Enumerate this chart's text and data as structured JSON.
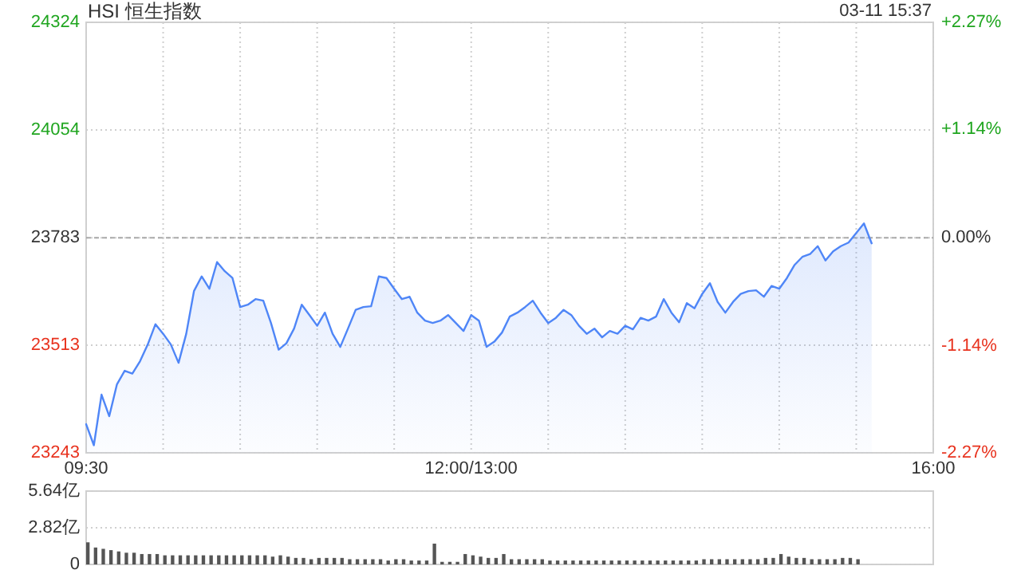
{
  "chart_data": [
    {
      "type": "area",
      "title": "HSI 恒生指数",
      "subtitle": "03-11 15:37",
      "categories": [
        "09:30",
        null,
        null,
        null,
        null,
        null,
        null,
        null,
        null,
        null,
        null,
        null,
        null,
        null,
        null,
        null,
        null,
        null,
        null,
        null,
        null,
        null,
        null,
        null,
        null,
        null,
        null,
        null,
        null,
        null,
        null,
        null,
        null,
        null,
        null,
        null,
        null,
        null,
        null,
        null,
        null,
        null,
        null,
        null,
        null,
        null,
        null,
        null,
        null,
        null,
        "12:00/13:00",
        null,
        null,
        null,
        null,
        null,
        null,
        null,
        null,
        null,
        null,
        null,
        null,
        null,
        null,
        null,
        null,
        null,
        null,
        null,
        null,
        null,
        null,
        null,
        null,
        null,
        null,
        null,
        null,
        null,
        null,
        null,
        null,
        null,
        null,
        null,
        null,
        null,
        null,
        null,
        null,
        null,
        null,
        null,
        null,
        null,
        null,
        null,
        null,
        null,
        null,
        null,
        null,
        null,
        null,
        null,
        null,
        null,
        null,
        null,
        "16:00"
      ],
      "series": [
        {
          "color": "#4f86f7",
          "values": [
            23315,
            23262,
            23389,
            23335,
            23415,
            23449,
            23442,
            23473,
            23515,
            23566,
            23542,
            23515,
            23469,
            23542,
            23649,
            23686,
            23655,
            23722,
            23699,
            23682,
            23609,
            23615,
            23629,
            23625,
            23569,
            23502,
            23518,
            23555,
            23615,
            23589,
            23562,
            23595,
            23542,
            23509,
            23555,
            23602,
            23609,
            23611,
            23686,
            23682,
            23655,
            23629,
            23635,
            23595,
            23575,
            23569,
            23575,
            23589,
            23569,
            23549,
            23589,
            23575,
            23509,
            23522,
            23545,
            23585,
            23595,
            23609,
            23625,
            23595,
            23569,
            23582,
            23602,
            23589,
            23562,
            23542,
            23555,
            23533,
            23549,
            23542,
            23562,
            23553,
            23582,
            23575,
            23585,
            23629,
            23595,
            23571,
            23619,
            23606,
            23642,
            23669,
            23622,
            23595,
            23622,
            23642,
            23649,
            23651,
            23635,
            23662,
            23655,
            23682,
            23715,
            23735,
            23742,
            23762,
            23726,
            23749,
            23762,
            23771,
            23795,
            23819,
            23769,
            null,
            null,
            null,
            null,
            null,
            null,
            null,
            null
          ]
        }
      ],
      "ylim": [
        23243,
        24324
      ],
      "yticks": [
        23243,
        23513,
        23783,
        24054,
        24324
      ],
      "y2lim": [
        -2.27,
        2.27
      ],
      "y2ticks": [
        {
          "value": -2.27,
          "label": "-2.27%"
        },
        {
          "value": -1.14,
          "label": "-1.14%"
        },
        {
          "value": 0,
          "label": "0.00%"
        },
        {
          "value": 1.14,
          "label": "+1.14%"
        },
        {
          "value": 2.27,
          "label": "+2.27%"
        }
      ],
      "ref_lines": [
        {
          "axis": "y",
          "value": 23783
        }
      ],
      "grid": true
    },
    {
      "type": "bar",
      "categories": [
        null,
        null,
        null,
        null,
        null,
        null,
        null,
        null,
        null,
        null,
        null,
        null,
        null,
        null,
        null,
        null,
        null,
        null,
        null,
        null,
        null,
        null,
        null,
        null,
        null,
        null,
        null,
        null,
        null,
        null,
        null,
        null,
        null,
        null,
        null,
        null,
        null,
        null,
        null,
        null,
        null,
        null,
        null,
        null,
        null,
        null,
        null,
        null,
        null,
        null,
        null,
        null,
        null,
        null,
        null,
        null,
        null,
        null,
        null,
        null,
        null,
        null,
        null,
        null,
        null,
        null,
        null,
        null,
        null,
        null,
        null,
        null,
        null,
        null,
        null,
        null,
        null,
        null,
        null,
        null,
        null,
        null,
        null,
        null,
        null,
        null,
        null,
        null,
        null,
        null,
        null,
        null,
        null,
        null,
        null,
        null,
        null,
        null,
        null,
        null,
        null,
        null,
        null,
        null,
        null,
        null,
        null,
        null,
        null,
        null,
        null
      ],
      "values": [
        1.7,
        1.3,
        1.2,
        1.1,
        1.0,
        0.9,
        0.9,
        0.8,
        0.8,
        0.8,
        0.7,
        0.7,
        0.7,
        0.7,
        0.7,
        0.7,
        0.7,
        0.7,
        0.7,
        0.7,
        0.7,
        0.7,
        0.7,
        0.7,
        0.6,
        0.7,
        0.6,
        0.5,
        0.5,
        0.4,
        0.5,
        0.5,
        0.5,
        0.5,
        0.4,
        0.4,
        0.4,
        0.4,
        0.4,
        0.3,
        0.4,
        0.4,
        0.3,
        0.3,
        0.3,
        1.6,
        0.2,
        0.2,
        0.2,
        0.8,
        0.7,
        0.6,
        0.5,
        0.5,
        0.8,
        0.4,
        0.4,
        0.4,
        0.4,
        0.4,
        0.3,
        0.3,
        0.3,
        0.3,
        0.3,
        0.3,
        0.3,
        0.3,
        0.3,
        0.3,
        0.3,
        0.3,
        0.3,
        0.3,
        0.3,
        0.3,
        0.3,
        0.3,
        0.3,
        0.3,
        0.4,
        0.4,
        0.4,
        0.4,
        0.4,
        0.4,
        0.4,
        0.4,
        0.5,
        0.5,
        0.8,
        0.6,
        0.5,
        0.5,
        0.4,
        0.4,
        0.4,
        0.4,
        0.5,
        0.5,
        0.4,
        null,
        null,
        null,
        null,
        null,
        null,
        null,
        null,
        null,
        null
      ],
      "color": "#555555",
      "ylim": [
        0,
        5.64
      ],
      "yticks": [
        0,
        {
          "value": 2.82,
          "label": "2.82亿"
        },
        {
          "value": 5.64,
          "label": "5.64亿"
        }
      ],
      "grid": "y",
      "tick_labels": "y"
    }
  ]
}
